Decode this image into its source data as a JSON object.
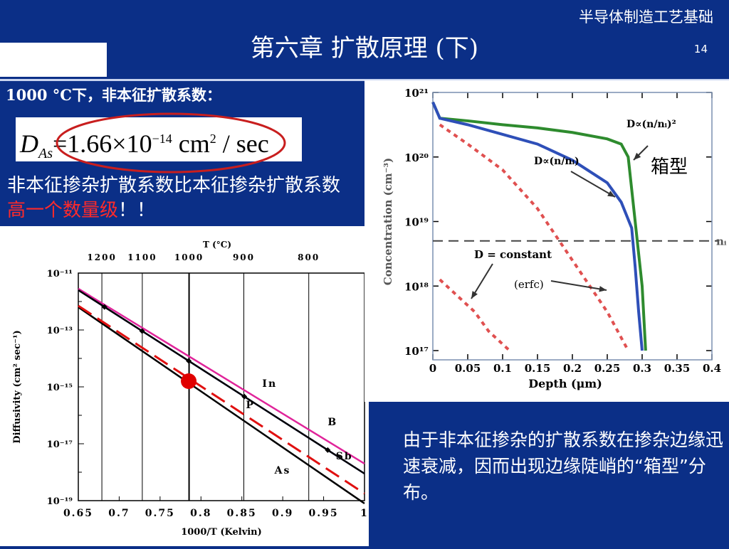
{
  "header": {
    "course": "半导体制造工艺基础",
    "title": "第六章  扩散原理 (下)",
    "page": "14"
  },
  "left": {
    "line1": "1000 °C下，非本征扩散系数：",
    "eq_D": "D",
    "eq_sub": "As",
    "eq_main": "=1.66×10",
    "eq_exp": "−14",
    "eq_unit": " cm",
    "eq_unit_sup": "2",
    "eq_tail": " / sec",
    "desc_part1": "非本征掺杂扩散系数比本征掺杂扩散系数",
    "desc_highlight": "高一个数量级",
    "desc_part2": "！！"
  },
  "bottom_text": "由于非本征掺杂的扩散系数在掺杂边缘迅速衰减，因而出现边缘陡峭的“箱型”分布。",
  "colors": {
    "bg": "#0b2f87",
    "highlight": "#ff2a2a",
    "oval": "#c81e1e"
  },
  "chart_data": [
    {
      "type": "line",
      "title": "T (°C)",
      "top_ticks": [
        "1200",
        "1100",
        "1000",
        "900",
        "800"
      ],
      "xlabel": "1000/T    (Kelvin)",
      "ylabel": "Diffusivity   (cm² sec⁻¹)",
      "xlim": [
        0.65,
        1.0
      ],
      "x_ticks": [
        "0.65",
        "0.7",
        "0.75",
        "0.8",
        "0.85",
        "0.9",
        "0.95",
        "1"
      ],
      "y_ticks": [
        "10⁻¹¹",
        "10⁻¹³",
        "10⁻¹⁵",
        "10⁻¹⁷",
        "10⁻¹⁹"
      ],
      "ylim_log10": [
        -19,
        -11
      ],
      "series": [
        {
          "name": "B",
          "color": "#e0249a",
          "x": [
            0.65,
            1.0
          ],
          "log10y": [
            -11.55,
            -17.7
          ]
        },
        {
          "name": "P",
          "color": "#2a3fe0",
          "x": [
            0.65,
            1.0
          ],
          "log10y": [
            -11.6,
            -18.05
          ]
        },
        {
          "name": "In",
          "color": "#000000",
          "x": [
            0.65,
            1.0
          ],
          "log10y": [
            -11.6,
            -18.05
          ]
        },
        {
          "name": "As",
          "color": "#000000",
          "x": [
            0.65,
            1.0
          ],
          "log10y": [
            -12.2,
            -19.1
          ]
        },
        {
          "name": "Sb",
          "color": "#e01010",
          "dash": true,
          "x": [
            0.65,
            1.0
          ],
          "log10y": [
            -12.15,
            -18.75
          ]
        }
      ],
      "highlight_point": {
        "x": 0.785,
        "log10y": -14.8
      }
    },
    {
      "type": "line",
      "xlabel": "Depth (μm)",
      "ylabel": "Concentration (cm⁻³)",
      "xlim": [
        0,
        0.4
      ],
      "x_ticks": [
        "0",
        "0.05",
        "0.1",
        "0.15",
        "0.2",
        "0.25",
        "0.3",
        "0.35",
        "0.4"
      ],
      "y_ticks": [
        "10²¹",
        "10²⁰",
        "10¹⁹",
        "10¹⁸",
        "10¹⁷"
      ],
      "ylim_log10": [
        17,
        21
      ],
      "ni_label": "nᵢ",
      "ni_log10": 18.7,
      "annotations": [
        "D∝(n/nᵢ)²",
        "D∝(n/nᵢ)",
        "D = constant",
        "(erfc)",
        "箱型"
      ],
      "series": [
        {
          "name": "D∝(n/nᵢ)²",
          "color": "#2e8b2e",
          "x": [
            0,
            0.01,
            0.05,
            0.1,
            0.15,
            0.2,
            0.25,
            0.27,
            0.28,
            0.29,
            0.3,
            0.305
          ],
          "log10y": [
            20.85,
            20.6,
            20.56,
            20.5,
            20.45,
            20.38,
            20.28,
            20.2,
            20.0,
            19.0,
            18.0,
            17.0
          ]
        },
        {
          "name": "D∝(n/nᵢ)",
          "color": "#2e4fb8",
          "x": [
            0,
            0.01,
            0.05,
            0.1,
            0.15,
            0.2,
            0.25,
            0.27,
            0.285,
            0.29,
            0.295,
            0.3
          ],
          "log10y": [
            20.85,
            20.6,
            20.5,
            20.35,
            20.2,
            19.95,
            19.6,
            19.3,
            18.9,
            18.3,
            17.6,
            17.0
          ]
        },
        {
          "name": "D = constant",
          "color": "#e05050",
          "dash": true,
          "x": [
            0.01,
            0.05,
            0.1,
            0.15,
            0.2,
            0.25,
            0.28
          ],
          "log10y": [
            20.5,
            20.2,
            19.8,
            19.2,
            18.4,
            17.6,
            17.0
          ]
        },
        {
          "name": "(erfc)",
          "color": "#e05050",
          "dash": true,
          "x": [
            0.01,
            0.03,
            0.06,
            0.08,
            0.11
          ],
          "log10y": [
            18.1,
            17.9,
            17.6,
            17.3,
            17.0
          ]
        }
      ]
    }
  ]
}
